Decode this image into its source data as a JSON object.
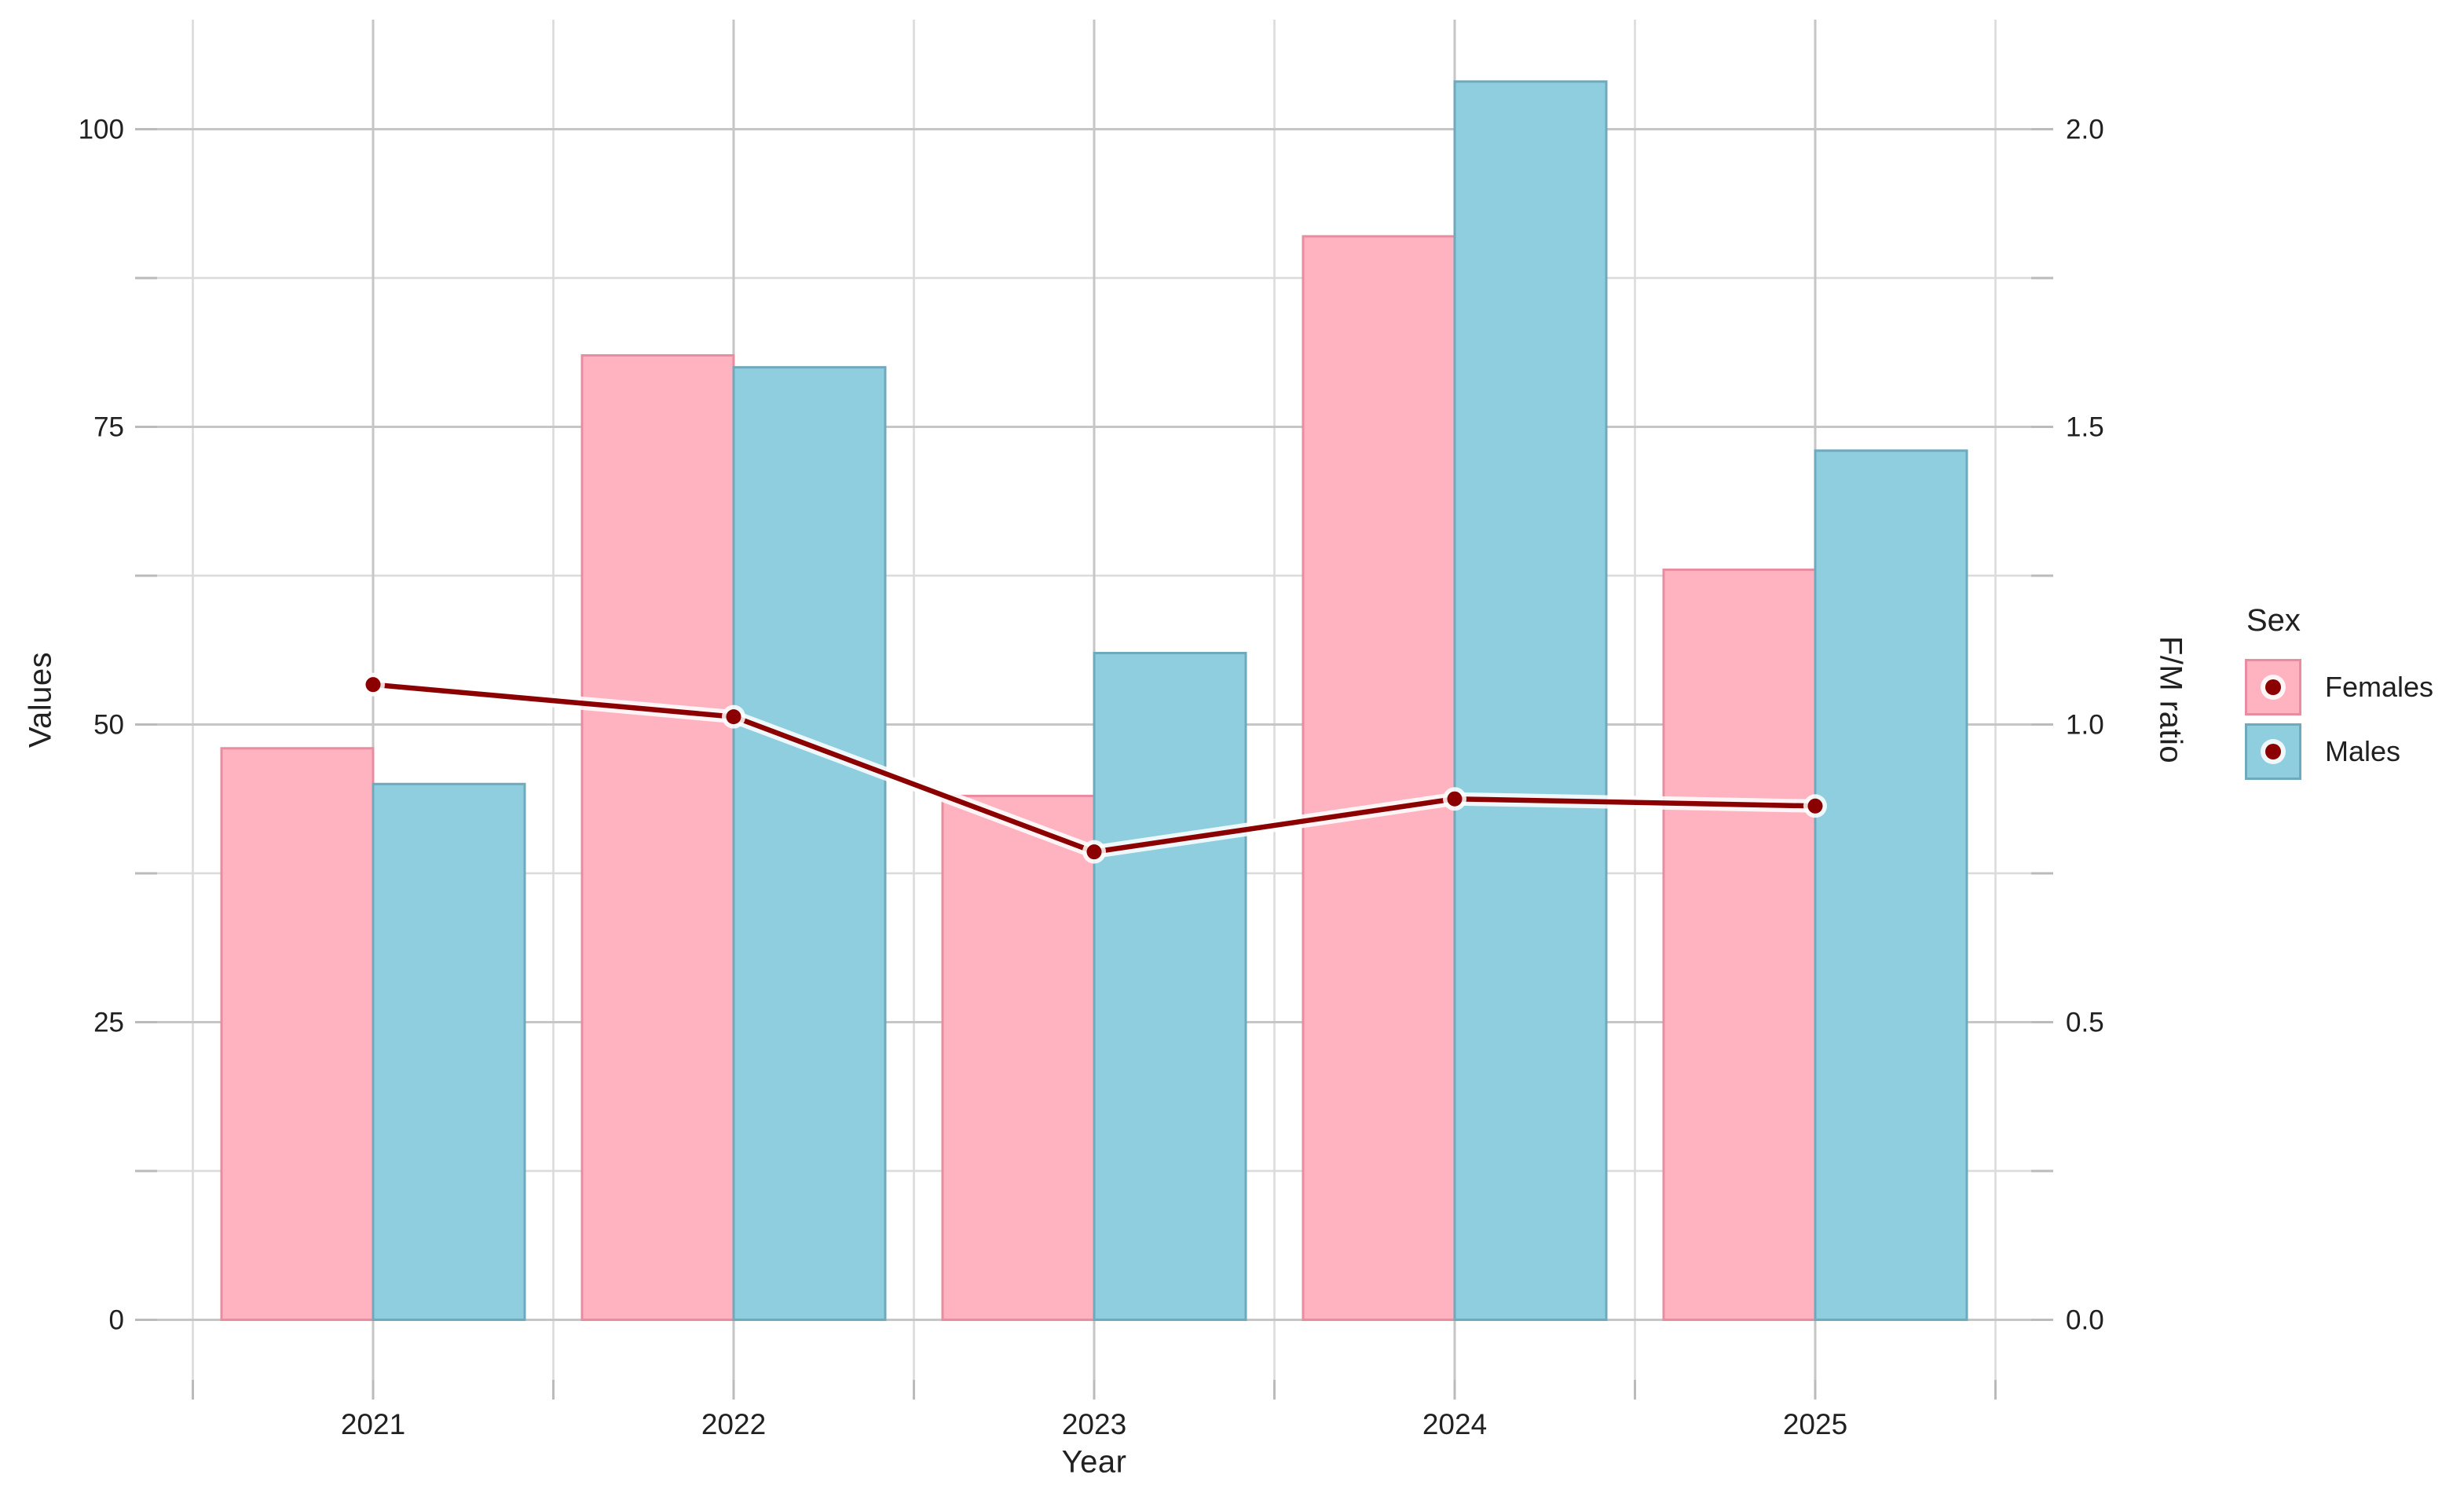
{
  "chart_data": {
    "type": "bar",
    "subtype": "grouped-bars-with-line-overlay",
    "title": "",
    "categories": [
      "2021",
      "2022",
      "2023",
      "2024",
      "2025"
    ],
    "series": [
      {
        "name": "Females",
        "values": [
          48,
          81,
          44,
          91,
          63
        ]
      },
      {
        "name": "Males",
        "values": [
          45,
          80,
          56,
          104,
          73
        ]
      }
    ],
    "line_series": {
      "name": "F/M ratio",
      "values": [
        1.067,
        1.013,
        0.786,
        0.875,
        0.863
      ],
      "axis": "right",
      "right_to_left_scale_factor": 50
    },
    "xlabel": "Year",
    "ylabel_left": "Values",
    "ylabel_right": "F/M ratio",
    "ylim_left": [
      0,
      100
    ],
    "ylim_right": [
      0,
      2
    ],
    "y_left_ticks": {
      "values": [
        0,
        25,
        50,
        75,
        100
      ],
      "labels": [
        "0",
        "25",
        "50",
        "75",
        "100"
      ]
    },
    "y_left_minor": [
      12.5,
      37.5,
      62.5,
      87.5
    ],
    "y_right_ticks": {
      "values": [
        0,
        0.5,
        1,
        1.5,
        2
      ],
      "labels": [
        "0.0",
        "0.5",
        "1.0",
        "1.5",
        "2.0"
      ]
    },
    "y_right_minor": [
      0.25,
      0.75,
      1.25,
      1.75
    ],
    "grid": {
      "major": true,
      "minor": true
    },
    "legend": {
      "title": "Sex",
      "position": "right",
      "items": [
        {
          "label": "Females",
          "swatch": "females"
        },
        {
          "label": "Males",
          "swatch": "males"
        }
      ]
    },
    "colors": {
      "females_fill": "#FFB3C1",
      "females_stroke": "#E98CA0",
      "males_fill": "#8FCEDF",
      "males_stroke": "#6FA9BC",
      "line": "#8B0000",
      "line_halo": "#FFFFFF",
      "grid_major": "#C6C6C6",
      "grid_minor": "#DBDBDB",
      "tick": "#BBBBBB",
      "text": "#212121",
      "background": "#FFFFFF"
    }
  }
}
